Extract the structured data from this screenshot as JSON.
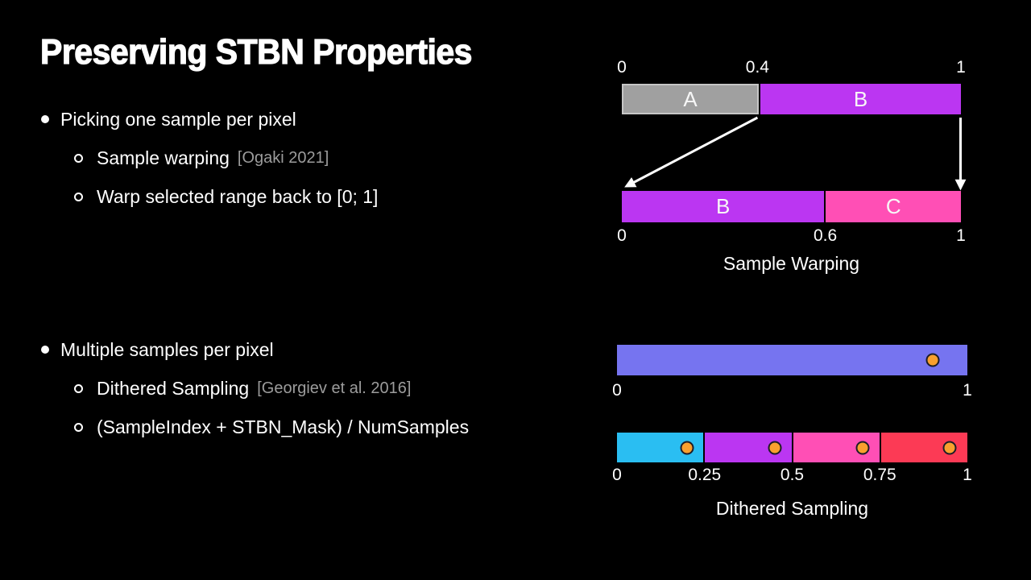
{
  "slide_title": "Preserving STBN Properties",
  "bullets": [
    {
      "text": "Picking one sample per pixel",
      "subs": [
        {
          "text": "Sample warping",
          "cite": "[Ogaki 2021]"
        },
        {
          "text": "Warp selected range back to [0; 1]",
          "cite": null
        }
      ]
    },
    {
      "text": "Multiple samples per pixel",
      "subs": [
        {
          "text": "Dithered Sampling",
          "cite": "[Georgiev et al. 2016]"
        },
        {
          "text": "(SampleIndex + STBN_Mask) / NumSamples",
          "cite": null
        }
      ]
    }
  ],
  "diagrams": {
    "sample_warping": {
      "caption": "Sample Warping",
      "source_bar": {
        "ticks": [
          {
            "label": "0",
            "pos": 0
          },
          {
            "label": "0.4",
            "pos": 0.4
          },
          {
            "label": "1",
            "pos": 1
          }
        ],
        "segments": [
          {
            "label": "A",
            "from": 0,
            "to": 0.4,
            "color": "#a0a0a0",
            "border": "#c6c6c6"
          },
          {
            "label": "B",
            "from": 0.4,
            "to": 1,
            "color": "#bb36f2",
            "border": null
          }
        ]
      },
      "warped_bar": {
        "ticks": [
          {
            "label": "0",
            "pos": 0
          },
          {
            "label": "0.6",
            "pos": 0.6
          },
          {
            "label": "1",
            "pos": 1
          }
        ],
        "segments": [
          {
            "label": "B",
            "from": 0,
            "to": 0.6,
            "color": "#bb36f2",
            "border": null
          },
          {
            "label": "C",
            "from": 0.6,
            "to": 1,
            "color": "#ff4fb5",
            "border": null
          }
        ]
      }
    },
    "dithered_sampling": {
      "caption": "Dithered Sampling",
      "sample_dot_color": "#f9a02e",
      "sample_dot_border": "#1e1e28",
      "single_sample_bar": {
        "ticks": [
          {
            "label": "0",
            "pos": 0
          },
          {
            "label": "1",
            "pos": 1
          }
        ],
        "segments": [
          {
            "label": "",
            "from": 0,
            "to": 1,
            "color": "#7674f0",
            "border": null
          }
        ],
        "samples": [
          0.9
        ]
      },
      "multi_sample_bar": {
        "ticks": [
          {
            "label": "0",
            "pos": 0
          },
          {
            "label": "0.25",
            "pos": 0.25
          },
          {
            "label": "0.5",
            "pos": 0.5
          },
          {
            "label": "0.75",
            "pos": 0.75
          },
          {
            "label": "1",
            "pos": 1
          }
        ],
        "segments": [
          {
            "label": "",
            "from": 0,
            "to": 0.25,
            "color": "#2abef2",
            "border": null
          },
          {
            "label": "",
            "from": 0.25,
            "to": 0.5,
            "color": "#bb36f2",
            "border": null
          },
          {
            "label": "",
            "from": 0.5,
            "to": 0.75,
            "color": "#ff4fb5",
            "border": null
          },
          {
            "label": "",
            "from": 0.75,
            "to": 1,
            "color": "#fc3a55",
            "border": null
          }
        ],
        "samples": [
          0.2,
          0.45,
          0.7,
          0.95
        ]
      }
    }
  }
}
